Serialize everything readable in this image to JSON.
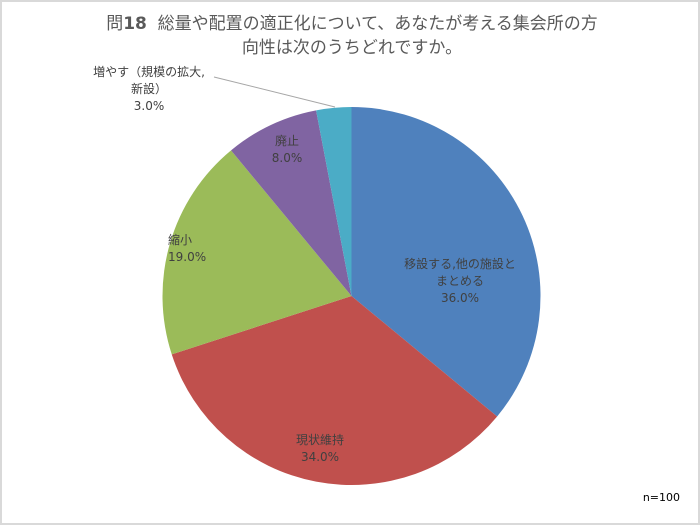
{
  "title": {
    "prefix": "問",
    "number": "18",
    "line1": "総量や配置の適正化について、あなたが考える集会所の方",
    "line2": "向性は次のうちどれですか。"
  },
  "sample_size": "n=100",
  "chart_data": {
    "type": "pie",
    "title": "問18 総量や配置の適正化について、あなたが考える集会所の方向性は次のうちどれですか。",
    "categories": [
      "移設する,他の施設とまとめる",
      "現状維持",
      "縮小",
      "廃止",
      "増やす（規模の拡大,新設）"
    ],
    "values": [
      36.0,
      34.0,
      19.0,
      8.0,
      3.0
    ],
    "colors": [
      "#4F81BD",
      "#C0504D",
      "#9BBB59",
      "#8064A2",
      "#4BACC6"
    ],
    "start_angle": "12 o'clock, clockwise",
    "legend": "none (data labels on slices)",
    "annotation": "n=100"
  },
  "labels": [
    {
      "line1": "移設する,他の施設と",
      "line2": "まとめる",
      "pct": "36.0%"
    },
    {
      "line1": "現状維持",
      "pct": "34.0%"
    },
    {
      "line1": "縮小",
      "pct": "19.0%"
    },
    {
      "line1": "廃止",
      "pct": "8.0%"
    },
    {
      "line1": "増やす（規模の拡大,",
      "line2": "新設）",
      "pct": "3.0%"
    }
  ]
}
